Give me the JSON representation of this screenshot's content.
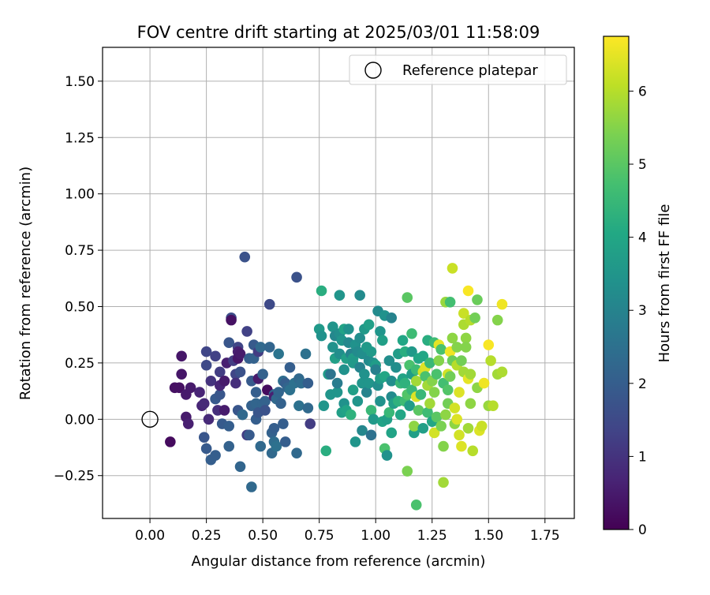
{
  "chart_data": {
    "type": "scatter",
    "title": "FOV centre drift starting at 2025/03/01 11:58:09",
    "xlabel": "Angular distance from reference (arcmin)",
    "ylabel": "Rotation from reference (arcmin)",
    "xlim": [
      -0.21,
      1.88
    ],
    "ylim": [
      -0.44,
      1.65
    ],
    "x_ticks": [
      "0.00",
      "0.25",
      "0.50",
      "0.75",
      "1.00",
      "1.25",
      "1.50",
      "1.75"
    ],
    "y_ticks": [
      "−0.25",
      "0.00",
      "0.25",
      "0.50",
      "0.75",
      "1.00",
      "1.25",
      "1.50"
    ],
    "grid": true,
    "legend": {
      "position": "top-right",
      "entries": [
        "Reference platepar"
      ]
    },
    "reference_point": {
      "x": 0.0,
      "y": 0.0
    },
    "colorbar": {
      "label": "Hours from first FF file",
      "range": [
        0,
        6.75
      ],
      "ticks": [
        "0",
        "1",
        "2",
        "3",
        "4",
        "5",
        "6"
      ],
      "colormap": [
        "#440154",
        "#482475",
        "#414487",
        "#355f8d",
        "#2a788e",
        "#21918c",
        "#22a884",
        "#44bf70",
        "#7ad151",
        "#bddf26",
        "#fde725"
      ]
    },
    "points": [
      [
        0.09,
        -0.1,
        0.2
      ],
      [
        0.11,
        0.14,
        0.3
      ],
      [
        0.13,
        0.14,
        0.3
      ],
      [
        0.14,
        0.28,
        0.4
      ],
      [
        0.14,
        0.2,
        0.4
      ],
      [
        0.16,
        0.01,
        0.5
      ],
      [
        0.17,
        -0.02,
        0.6
      ],
      [
        0.16,
        0.11,
        0.5
      ],
      [
        0.18,
        0.14,
        0.5
      ],
      [
        0.22,
        0.12,
        0.7
      ],
      [
        0.23,
        0.06,
        0.7
      ],
      [
        0.24,
        0.07,
        0.8
      ],
      [
        0.25,
        0.24,
        1.5
      ],
      [
        0.25,
        0.3,
        1.4
      ],
      [
        0.24,
        -0.08,
        1.8
      ],
      [
        0.25,
        -0.13,
        1.9
      ],
      [
        0.26,
        0.0,
        0.8
      ],
      [
        0.27,
        0.17,
        1.0
      ],
      [
        0.27,
        -0.18,
        2.0
      ],
      [
        0.29,
        0.09,
        1.9
      ],
      [
        0.29,
        -0.16,
        2.0
      ],
      [
        0.29,
        0.28,
        1.3
      ],
      [
        0.3,
        0.04,
        0.9
      ],
      [
        0.31,
        0.21,
        1.2
      ],
      [
        0.31,
        0.11,
        1.8
      ],
      [
        0.31,
        0.15,
        0.7
      ],
      [
        0.32,
        -0.02,
        1.9
      ],
      [
        0.33,
        0.04,
        0.5
      ],
      [
        0.33,
        0.17,
        0.5
      ],
      [
        0.34,
        0.25,
        0.6
      ],
      [
        0.35,
        0.34,
        1.8
      ],
      [
        0.35,
        -0.03,
        2.0
      ],
      [
        0.35,
        -0.12,
        2.1
      ],
      [
        0.36,
        0.45,
        1.6
      ],
      [
        0.36,
        0.44,
        0.3
      ],
      [
        0.37,
        0.26,
        1.2
      ],
      [
        0.38,
        0.2,
        1.4
      ],
      [
        0.38,
        0.16,
        0.9
      ],
      [
        0.39,
        0.32,
        1.4
      ],
      [
        0.39,
        0.3,
        0.6
      ],
      [
        0.39,
        0.27,
        0.4
      ],
      [
        0.39,
        0.04,
        1.8
      ],
      [
        0.4,
        0.21,
        1.7
      ],
      [
        0.4,
        0.29,
        0.5
      ],
      [
        0.4,
        -0.21,
        2.2
      ],
      [
        0.41,
        0.02,
        2.3
      ],
      [
        0.42,
        0.72,
        1.7
      ],
      [
        0.43,
        -0.07,
        1.2
      ],
      [
        0.43,
        0.39,
        1.3
      ],
      [
        0.44,
        0.27,
        2.0
      ],
      [
        0.44,
        -0.07,
        1.9
      ],
      [
        0.45,
        -0.3,
        2.3
      ],
      [
        0.45,
        0.17,
        1.9
      ],
      [
        0.45,
        0.06,
        2.1
      ],
      [
        0.46,
        0.33,
        1.9
      ],
      [
        0.46,
        0.27,
        2.1
      ],
      [
        0.47,
        0.07,
        2.2
      ],
      [
        0.47,
        0.12,
        2.0
      ],
      [
        0.47,
        0.0,
        2.0
      ],
      [
        0.48,
        0.3,
        1.2
      ],
      [
        0.48,
        0.03,
        1.8
      ],
      [
        0.48,
        0.18,
        0.5
      ],
      [
        0.49,
        -0.12,
        2.3
      ],
      [
        0.49,
        0.32,
        2.3
      ],
      [
        0.5,
        0.2,
        2.1
      ],
      [
        0.5,
        0.07,
        2.2
      ],
      [
        0.51,
        0.08,
        2.1
      ],
      [
        0.51,
        0.04,
        1.7
      ],
      [
        0.52,
        0.13,
        0.2
      ],
      [
        0.53,
        0.51,
        1.5
      ],
      [
        0.53,
        0.32,
        2.2
      ],
      [
        0.54,
        -0.06,
        2.1
      ],
      [
        0.54,
        -0.15,
        2.3
      ],
      [
        0.55,
        -0.04,
        2.0
      ],
      [
        0.55,
        0.11,
        2.2
      ],
      [
        0.55,
        0.1,
        0.6
      ],
      [
        0.55,
        -0.1,
        2.4
      ],
      [
        0.56,
        0.09,
        2.3
      ],
      [
        0.56,
        -0.12,
        2.5
      ],
      [
        0.57,
        0.29,
        2.6
      ],
      [
        0.57,
        0.12,
        2.2
      ],
      [
        0.58,
        0.07,
        2.1
      ],
      [
        0.59,
        -0.02,
        2.0
      ],
      [
        0.59,
        0.17,
        2.4
      ],
      [
        0.6,
        -0.1,
        2.0
      ],
      [
        0.6,
        0.16,
        2.0
      ],
      [
        0.61,
        0.14,
        2.2
      ],
      [
        0.62,
        0.13,
        2.5
      ],
      [
        0.62,
        0.23,
        2.0
      ],
      [
        0.64,
        0.16,
        2.5
      ],
      [
        0.65,
        0.63,
        1.7
      ],
      [
        0.65,
        -0.15,
        2.3
      ],
      [
        0.66,
        0.18,
        2.3
      ],
      [
        0.66,
        0.06,
        2.5
      ],
      [
        0.67,
        0.16,
        2.4
      ],
      [
        0.69,
        0.29,
        2.5
      ],
      [
        0.7,
        0.05,
        2.3
      ],
      [
        0.71,
        -0.02,
        1.2
      ],
      [
        0.7,
        0.16,
        2.0
      ],
      [
        0.75,
        0.4,
        3.6
      ],
      [
        0.76,
        0.57,
        4.2
      ],
      [
        0.76,
        0.37,
        3.4
      ],
      [
        0.77,
        0.06,
        3.5
      ],
      [
        0.78,
        -0.14,
        4.2
      ],
      [
        0.79,
        0.2,
        3.7
      ],
      [
        0.8,
        0.2,
        2.6
      ],
      [
        0.8,
        0.11,
        3.5
      ],
      [
        0.81,
        0.41,
        3.5
      ],
      [
        0.81,
        0.32,
        3.4
      ],
      [
        0.82,
        0.37,
        3.1
      ],
      [
        0.82,
        0.27,
        3.8
      ],
      [
        0.83,
        0.12,
        3.5
      ],
      [
        0.83,
        0.16,
        2.8
      ],
      [
        0.84,
        0.38,
        3.3
      ],
      [
        0.84,
        0.29,
        3.3
      ],
      [
        0.84,
        0.55,
        3.5
      ],
      [
        0.85,
        0.03,
        3.8
      ],
      [
        0.85,
        0.35,
        3.5
      ],
      [
        0.86,
        0.4,
        3.9
      ],
      [
        0.86,
        0.22,
        3.4
      ],
      [
        0.86,
        0.07,
        3.4
      ],
      [
        0.87,
        0.27,
        3.8
      ],
      [
        0.87,
        0.04,
        3.9
      ],
      [
        0.88,
        0.4,
        3.4
      ],
      [
        0.88,
        0.34,
        3.1
      ],
      [
        0.89,
        0.29,
        3.0
      ],
      [
        0.89,
        0.02,
        4.3
      ],
      [
        0.9,
        0.13,
        3.8
      ],
      [
        0.9,
        0.27,
        3.7
      ],
      [
        0.9,
        0.25,
        3.6
      ],
      [
        0.91,
        0.33,
        3.4
      ],
      [
        0.91,
        -0.1,
        3.5
      ],
      [
        0.92,
        0.3,
        3.2
      ],
      [
        0.92,
        0.08,
        3.5
      ],
      [
        0.93,
        0.36,
        3.3
      ],
      [
        0.93,
        0.23,
        3.0
      ],
      [
        0.93,
        0.55,
        3.2
      ],
      [
        0.94,
        0.16,
        3.5
      ],
      [
        0.94,
        0.29,
        3.3
      ],
      [
        0.94,
        -0.05,
        3.1
      ],
      [
        0.95,
        0.2,
        3.4
      ],
      [
        0.95,
        0.4,
        3.6
      ],
      [
        0.96,
        0.12,
        3.0
      ],
      [
        0.96,
        0.32,
        3.6
      ],
      [
        0.97,
        0.26,
        3.2
      ],
      [
        0.97,
        0.42,
        3.8
      ],
      [
        0.97,
        0.16,
        3.5
      ],
      [
        0.98,
        0.04,
        4.5
      ],
      [
        0.98,
        -0.07,
        2.5
      ],
      [
        0.98,
        0.3,
        3.6
      ],
      [
        0.99,
        0.25,
        3.4
      ],
      [
        0.99,
        0.0,
        3.6
      ],
      [
        1.0,
        0.24,
        3.7
      ],
      [
        1.0,
        0.22,
        2.9
      ],
      [
        1.01,
        0.48,
        3.2
      ],
      [
        1.01,
        0.15,
        3.3
      ],
      [
        1.02,
        0.18,
        3.7
      ],
      [
        1.02,
        0.08,
        3.4
      ],
      [
        1.02,
        0.39,
        3.5
      ],
      [
        1.03,
        -0.01,
        3.9
      ],
      [
        1.03,
        0.35,
        3.8
      ],
      [
        1.04,
        -0.13,
        4.8
      ],
      [
        1.04,
        0.46,
        3.4
      ],
      [
        1.04,
        0.19,
        4.0
      ],
      [
        1.05,
        -0.16,
        3.4
      ],
      [
        1.05,
        0.0,
        3.8
      ],
      [
        1.06,
        0.03,
        4.5
      ],
      [
        1.06,
        0.26,
        3.3
      ],
      [
        1.07,
        0.17,
        3.3
      ],
      [
        1.07,
        0.1,
        3.2
      ],
      [
        1.07,
        0.45,
        3.0
      ],
      [
        1.07,
        -0.06,
        3.9
      ],
      [
        1.08,
        0.07,
        3.8
      ],
      [
        1.09,
        0.23,
        3.3
      ],
      [
        1.1,
        0.08,
        4.3
      ],
      [
        1.1,
        0.29,
        3.7
      ],
      [
        1.11,
        0.02,
        4.0
      ],
      [
        1.11,
        0.16,
        4.5
      ],
      [
        1.12,
        0.35,
        4.0
      ],
      [
        1.12,
        0.18,
        3.9
      ],
      [
        1.13,
        0.16,
        4.3
      ],
      [
        1.13,
        0.3,
        4.2
      ],
      [
        1.13,
        0.08,
        4.6
      ],
      [
        1.14,
        -0.23,
        5.4
      ],
      [
        1.14,
        0.54,
        5.0
      ],
      [
        1.14,
        0.11,
        4.9
      ],
      [
        1.15,
        0.06,
        3.7
      ],
      [
        1.15,
        0.24,
        4.8
      ],
      [
        1.16,
        0.3,
        3.6
      ],
      [
        1.16,
        0.38,
        4.6
      ],
      [
        1.16,
        0.2,
        3.7
      ],
      [
        1.16,
        0.13,
        4.5
      ],
      [
        1.17,
        -0.06,
        3.8
      ],
      [
        1.17,
        -0.03,
        5.6
      ],
      [
        1.18,
        -0.38,
        4.8
      ],
      [
        1.18,
        0.1,
        6.4
      ],
      [
        1.18,
        0.17,
        5.8
      ],
      [
        1.18,
        0.22,
        4.6
      ],
      [
        1.19,
        0.04,
        5.0
      ],
      [
        1.19,
        0.27,
        4.0
      ],
      [
        1.2,
        0.11,
        4.5
      ],
      [
        1.21,
        0.28,
        4.0
      ],
      [
        1.21,
        0.21,
        6.3
      ],
      [
        1.21,
        -0.04,
        3.8
      ],
      [
        1.22,
        0.23,
        6.4
      ],
      [
        1.22,
        0.19,
        4.8
      ],
      [
        1.23,
        0.03,
        4.6
      ],
      [
        1.23,
        0.15,
        5.8
      ],
      [
        1.23,
        0.35,
        4.2
      ],
      [
        1.24,
        0.25,
        4.5
      ],
      [
        1.24,
        0.07,
        5.8
      ],
      [
        1.25,
        0.17,
        5.5
      ],
      [
        1.25,
        -0.01,
        4.0
      ],
      [
        1.26,
        0.34,
        4.6
      ],
      [
        1.26,
        0.12,
        5.5
      ],
      [
        1.26,
        -0.06,
        6.3
      ],
      [
        1.27,
        0.2,
        4.8
      ],
      [
        1.27,
        0.01,
        5.0
      ],
      [
        1.28,
        0.26,
        5.5
      ],
      [
        1.28,
        0.33,
        6.5
      ],
      [
        1.29,
        0.31,
        4.8
      ],
      [
        1.29,
        -0.03,
        5.4
      ],
      [
        1.3,
        -0.12,
        5.5
      ],
      [
        1.3,
        -0.28,
        5.8
      ],
      [
        1.3,
        0.16,
        4.7
      ],
      [
        1.31,
        0.52,
        5.7
      ],
      [
        1.31,
        0.02,
        5.6
      ],
      [
        1.32,
        0.2,
        6.3
      ],
      [
        1.32,
        0.13,
        4.9
      ],
      [
        1.32,
        0.07,
        5.3
      ],
      [
        1.33,
        0.3,
        6.6
      ],
      [
        1.33,
        0.52,
        4.7
      ],
      [
        1.33,
        0.19,
        5.3
      ],
      [
        1.34,
        0.36,
        5.6
      ],
      [
        1.34,
        0.67,
        6.2
      ],
      [
        1.34,
        0.26,
        5.2
      ],
      [
        1.35,
        -0.02,
        5.6
      ],
      [
        1.35,
        0.05,
        6.3
      ],
      [
        1.36,
        0.32,
        5.5
      ],
      [
        1.36,
        0.0,
        6.4
      ],
      [
        1.36,
        0.24,
        6.0
      ],
      [
        1.37,
        0.12,
        6.4
      ],
      [
        1.37,
        -0.07,
        6.3
      ],
      [
        1.38,
        0.26,
        5.3
      ],
      [
        1.38,
        -0.12,
        6.4
      ],
      [
        1.39,
        0.47,
        6.2
      ],
      [
        1.39,
        0.21,
        5.8
      ],
      [
        1.39,
        0.42,
        5.9
      ],
      [
        1.4,
        0.36,
        5.6
      ],
      [
        1.4,
        0.32,
        5.5
      ],
      [
        1.41,
        0.57,
        6.7
      ],
      [
        1.41,
        0.18,
        6.5
      ],
      [
        1.41,
        -0.04,
        5.8
      ],
      [
        1.42,
        0.44,
        6.0
      ],
      [
        1.42,
        0.07,
        5.6
      ],
      [
        1.42,
        0.2,
        5.8
      ],
      [
        1.43,
        -0.14,
        6.0
      ],
      [
        1.44,
        0.45,
        5.3
      ],
      [
        1.45,
        0.14,
        5.6
      ],
      [
        1.45,
        0.53,
        5.2
      ],
      [
        1.46,
        -0.05,
        6.4
      ],
      [
        1.47,
        -0.03,
        6.2
      ],
      [
        1.48,
        0.16,
        6.6
      ],
      [
        1.5,
        0.33,
        6.7
      ],
      [
        1.5,
        0.06,
        5.7
      ],
      [
        1.51,
        0.26,
        6.0
      ],
      [
        1.52,
        0.06,
        6.0
      ],
      [
        1.54,
        0.44,
        5.5
      ],
      [
        1.54,
        0.2,
        5.8
      ],
      [
        1.56,
        0.51,
        6.6
      ],
      [
        1.56,
        0.21,
        5.9
      ]
    ]
  }
}
